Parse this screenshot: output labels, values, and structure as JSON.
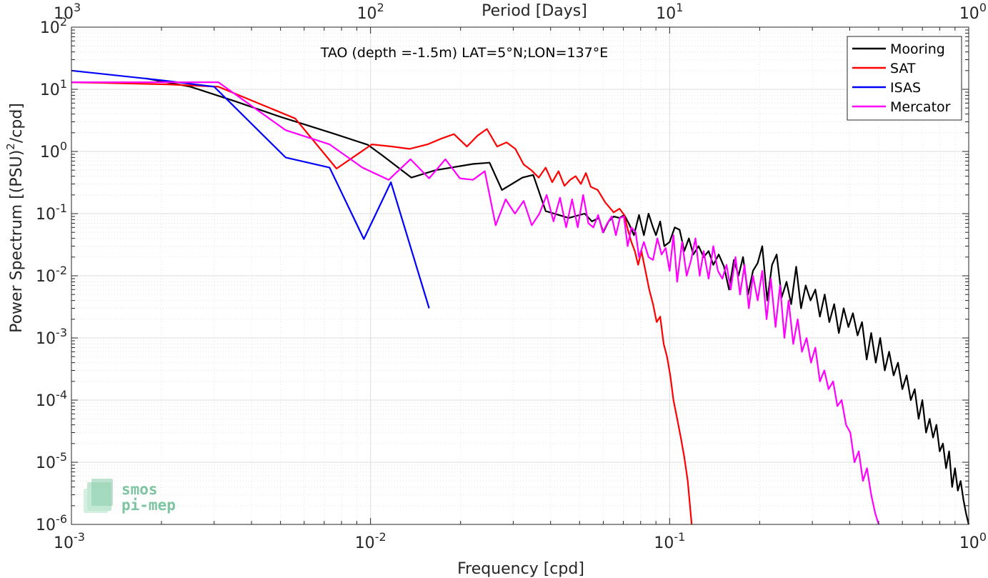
{
  "chart_data": {
    "type": "line",
    "title": "TAO (depth =-1.5m) LAT=5°N;LON=137°E",
    "xlabel": "Frequency [cpd]",
    "ylabel_main": "Power Spectrum [(PSU)",
    "ylabel_sup": "2",
    "ylabel_tail": "/cpd]",
    "x2label": "Period [Days]",
    "xscale": "log",
    "yscale": "log",
    "xlim": [
      0.001,
      1
    ],
    "ylim": [
      1e-06,
      100
    ],
    "grid": true,
    "legend_position": "top-right",
    "x_ticks": [
      {
        "value": 0.001,
        "base": "10",
        "exp": "-3"
      },
      {
        "value": 0.01,
        "base": "10",
        "exp": "-2"
      },
      {
        "value": 0.1,
        "base": "10",
        "exp": "-1"
      },
      {
        "value": 1,
        "base": "10",
        "exp": "0"
      }
    ],
    "x2_ticks": [
      {
        "value": 0.001,
        "base": "10",
        "exp": "3"
      },
      {
        "value": 0.01,
        "base": "10",
        "exp": "2"
      },
      {
        "value": 0.1,
        "base": "10",
        "exp": "1"
      },
      {
        "value": 1,
        "base": "10",
        "exp": "0"
      }
    ],
    "y_ticks": [
      {
        "value": 100,
        "base": "10",
        "exp": "2"
      },
      {
        "value": 10,
        "base": "10",
        "exp": "1"
      },
      {
        "value": 1,
        "base": "10",
        "exp": "0"
      },
      {
        "value": 0.1,
        "base": "10",
        "exp": "-1"
      },
      {
        "value": 0.01,
        "base": "10",
        "exp": "-2"
      },
      {
        "value": 0.001,
        "base": "10",
        "exp": "-3"
      },
      {
        "value": 0.0001,
        "base": "10",
        "exp": "-4"
      },
      {
        "value": 1e-05,
        "base": "10",
        "exp": "-5"
      },
      {
        "value": 1e-06,
        "base": "10",
        "exp": "-6"
      }
    ],
    "series": [
      {
        "name": "Mooring",
        "color": "#000000",
        "x": [
          0.00177,
          0.0025,
          0.0035,
          0.005,
          0.0075,
          0.0098,
          0.011,
          0.0137,
          0.0165,
          0.022,
          0.025,
          0.0275,
          0.0322,
          0.035,
          0.0385,
          0.046,
          0.052,
          0.055,
          0.058,
          0.06,
          0.0625,
          0.065,
          0.068,
          0.0705,
          0.073,
          0.076,
          0.079,
          0.082,
          0.085,
          0.088,
          0.09,
          0.093,
          0.096,
          0.1,
          0.104,
          0.108,
          0.112,
          0.116,
          0.12,
          0.125,
          0.13,
          0.135,
          0.14,
          0.146,
          0.152,
          0.158,
          0.164,
          0.17,
          0.176,
          0.183,
          0.19,
          0.197,
          0.204,
          0.212,
          0.22,
          0.228,
          0.237,
          0.246,
          0.255,
          0.265,
          0.275,
          0.285,
          0.296,
          0.307,
          0.318,
          0.33,
          0.342,
          0.355,
          0.368,
          0.382,
          0.396,
          0.41,
          0.425,
          0.44,
          0.456,
          0.472,
          0.489,
          0.506,
          0.524,
          0.542,
          0.561,
          0.58,
          0.6,
          0.62,
          0.64,
          0.66,
          0.68,
          0.7,
          0.72,
          0.74,
          0.76,
          0.78,
          0.8,
          0.82,
          0.84,
          0.86,
          0.88,
          0.9,
          0.92,
          0.94,
          0.96,
          0.98,
          1.0
        ],
        "y": [
          15,
          11,
          6.5,
          3.6,
          1.95,
          1.28,
          0.85,
          0.38,
          0.5,
          0.63,
          0.66,
          0.24,
          0.38,
          0.42,
          0.11,
          0.085,
          0.1,
          0.075,
          0.085,
          0.05,
          0.075,
          0.09,
          0.085,
          0.095,
          0.07,
          0.045,
          0.095,
          0.045,
          0.1,
          0.06,
          0.045,
          0.075,
          0.03,
          0.035,
          0.06,
          0.055,
          0.025,
          0.04,
          0.022,
          0.03,
          0.02,
          0.025,
          0.015,
          0.022,
          0.014,
          0.006,
          0.018,
          0.01,
          0.02,
          0.005,
          0.012,
          0.016,
          0.03,
          0.004,
          0.015,
          0.022,
          0.0045,
          0.008,
          0.0035,
          0.014,
          0.003,
          0.007,
          0.004,
          0.006,
          0.0022,
          0.005,
          0.0018,
          0.0035,
          0.0012,
          0.003,
          0.0015,
          0.0025,
          0.0011,
          0.0018,
          0.00045,
          0.0012,
          0.0004,
          0.001,
          0.0003,
          0.0006,
          0.00025,
          0.0004,
          0.00015,
          0.00025,
          0.0001,
          0.00015,
          5e-05,
          0.0001,
          3e-05,
          5e-05,
          2.5e-05,
          4e-05,
          1.5e-05,
          2e-05,
          8e-06,
          1.5e-05,
          4e-06,
          8e-06,
          3.5e-06,
          5e-06,
          2.5e-06,
          1.5e-06,
          1e-06
        ]
      },
      {
        "name": "SAT",
        "color": "#ff0000",
        "x": [
          0.001,
          0.0021,
          0.0031,
          0.0056,
          0.0077,
          0.0101,
          0.0118,
          0.0135,
          0.0155,
          0.0172,
          0.019,
          0.021,
          0.0228,
          0.0245,
          0.0265,
          0.0285,
          0.0305,
          0.0325,
          0.0345,
          0.0365,
          0.0385,
          0.0405,
          0.0425,
          0.0445,
          0.0465,
          0.0485,
          0.0505,
          0.0525,
          0.0545,
          0.0575,
          0.061,
          0.065,
          0.068,
          0.0705,
          0.0725,
          0.0745,
          0.0765,
          0.0785,
          0.0805,
          0.083,
          0.0855,
          0.088,
          0.0905,
          0.093,
          0.0955,
          0.098,
          0.1005,
          0.103,
          0.106,
          0.109,
          0.112,
          0.115,
          0.1185
        ],
        "y": [
          13,
          12,
          11,
          3.4,
          0.53,
          1.3,
          1.2,
          1.1,
          1.3,
          1.6,
          1.9,
          1.2,
          1.8,
          2.3,
          1.2,
          1.4,
          1.1,
          0.62,
          0.5,
          0.38,
          0.55,
          0.32,
          0.48,
          0.28,
          0.35,
          0.4,
          0.3,
          0.45,
          0.27,
          0.24,
          0.15,
          0.105,
          0.12,
          0.095,
          0.055,
          0.035,
          0.025,
          0.015,
          0.025,
          0.012,
          0.006,
          0.0035,
          0.0018,
          0.0022,
          0.0008,
          0.0005,
          0.00025,
          0.0001,
          5e-05,
          2.5e-05,
          1.2e-05,
          5e-06,
          1e-06
        ]
      },
      {
        "name": "ISAS",
        "color": "#0000ff",
        "x": [
          0.001,
          0.002,
          0.003,
          0.0052,
          0.0073,
          0.0095,
          0.0117,
          0.0157
        ],
        "y": [
          20,
          14,
          11,
          0.8,
          0.55,
          0.039,
          0.32,
          0.003
        ]
      },
      {
        "name": "Mercator",
        "color": "#ff00ff",
        "x": [
          0.001,
          0.0031,
          0.0052,
          0.0073,
          0.0094,
          0.0115,
          0.0136,
          0.0157,
          0.0178,
          0.0199,
          0.022,
          0.0241,
          0.0262,
          0.0283,
          0.0304,
          0.0325,
          0.0346,
          0.0367,
          0.0388,
          0.0409,
          0.043,
          0.0451,
          0.0472,
          0.0493,
          0.0514,
          0.0535,
          0.0556,
          0.0577,
          0.0598,
          0.0619,
          0.064,
          0.0661,
          0.0682,
          0.0703,
          0.0724,
          0.0745,
          0.077,
          0.079,
          0.082,
          0.085,
          0.088,
          0.091,
          0.094,
          0.097,
          0.1,
          0.103,
          0.106,
          0.11,
          0.114,
          0.118,
          0.122,
          0.126,
          0.13,
          0.135,
          0.14,
          0.145,
          0.15,
          0.155,
          0.16,
          0.166,
          0.172,
          0.178,
          0.184,
          0.19,
          0.197,
          0.204,
          0.211,
          0.218,
          0.226,
          0.234,
          0.242,
          0.25,
          0.259,
          0.268,
          0.277,
          0.287,
          0.297,
          0.307,
          0.318,
          0.329,
          0.34,
          0.352,
          0.364,
          0.376,
          0.389,
          0.402,
          0.415,
          0.429,
          0.443,
          0.457,
          0.472,
          0.487,
          0.5
        ],
        "y": [
          13,
          13,
          2.2,
          1.3,
          0.55,
          0.35,
          0.75,
          0.37,
          0.75,
          0.37,
          0.35,
          0.48,
          0.065,
          0.17,
          0.1,
          0.16,
          0.065,
          0.1,
          0.2,
          0.075,
          0.18,
          0.06,
          0.17,
          0.06,
          0.2,
          0.07,
          0.06,
          0.095,
          0.05,
          0.07,
          0.09,
          0.045,
          0.085,
          0.09,
          0.03,
          0.06,
          0.05,
          0.02,
          0.035,
          0.02,
          0.018,
          0.04,
          0.022,
          0.028,
          0.012,
          0.045,
          0.008,
          0.035,
          0.01,
          0.018,
          0.04,
          0.01,
          0.025,
          0.009,
          0.03,
          0.012,
          0.009,
          0.015,
          0.006,
          0.02,
          0.005,
          0.015,
          0.003,
          0.01,
          0.004,
          0.012,
          0.002,
          0.009,
          0.0015,
          0.007,
          0.001,
          0.004,
          0.0008,
          0.002,
          0.0006,
          0.001,
          0.0004,
          0.0007,
          0.0002,
          0.0003,
          0.00015,
          0.0002,
          8e-05,
          0.0001,
          4e-05,
          3e-05,
          1e-05,
          1.5e-05,
          5e-06,
          8e-06,
          3e-06,
          1.5e-06,
          1e-06
        ]
      }
    ],
    "logo": {
      "line1": "smos",
      "line2": "pi-mep"
    }
  }
}
